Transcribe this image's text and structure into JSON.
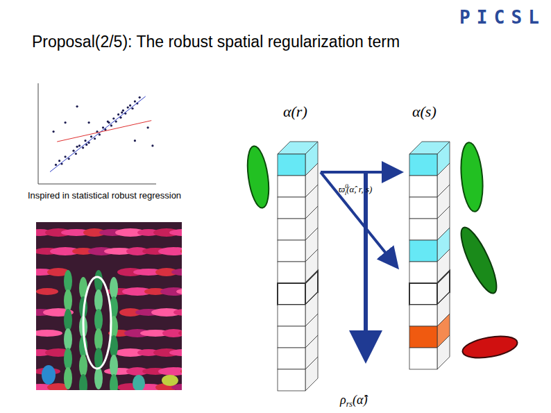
{
  "title": "Proposal(2/5): The robust spatial regularization term",
  "logo": "PICSL",
  "caption": "Inspired in statistical robust regression",
  "chart_data": {
    "type": "scatter",
    "x": [
      1.5,
      2.0,
      2.3,
      2.6,
      3.0,
      3.2,
      3.5,
      3.8,
      4.0,
      4.3,
      4.5,
      4.8,
      5.0,
      5.2,
      5.5,
      5.7,
      6.0,
      6.2,
      6.4,
      6.6,
      6.8,
      7.0,
      7.2,
      7.4,
      7.6,
      7.8,
      8.0,
      8.2,
      8.4,
      8.6,
      3.3,
      4.1,
      5.9,
      7.1,
      3.3,
      1.3,
      2.3,
      4.3,
      8.2,
      9.7,
      9.3,
      1.8
    ],
    "y": [
      1.9,
      2.0,
      2.7,
      2.5,
      3.3,
      3.0,
      3.8,
      3.6,
      4.3,
      4.1,
      4.7,
      4.5,
      5.2,
      4.9,
      5.6,
      5.4,
      6.1,
      5.8,
      6.5,
      6.2,
      6.9,
      6.6,
      7.3,
      7.0,
      7.6,
      7.8,
      7.5,
      8.2,
      8.0,
      8.6,
      3.7,
      3.9,
      6.2,
      7.1,
      7.7,
      5.2,
      6.1,
      6.1,
      4.3,
      3.8,
      5.6,
      2.3
    ],
    "color": "#1c1c50",
    "xlim": [
      0,
      10
    ],
    "ylim": [
      0,
      10
    ],
    "tick_labels": false,
    "fit_lines": [
      {
        "color": "#2f3fc8",
        "x": [
          1.0,
          9.1
        ],
        "y": [
          1.2,
          8.7
        ]
      },
      {
        "color": "#e03030",
        "x": [
          1.6,
          9.6
        ],
        "y": [
          4.2,
          6.3
        ]
      }
    ]
  },
  "diagram": {
    "columns": [
      {
        "label": "α(r)",
        "cells": 11,
        "highlight": [
          0
        ],
        "bold": [
          6
        ]
      },
      {
        "label": "α(s)",
        "cells": 10,
        "highlight": [
          0,
          4
        ],
        "outlier": [
          8
        ],
        "bold": [
          6
        ]
      }
    ],
    "weight_label": {
      "symbol": "ϖ",
      "sup": "0",
      "sub": "i",
      "args": "(α̂, r, s)"
    },
    "robust_label": {
      "symbol": "ρ",
      "sub": "rs",
      "args": "(α̂)"
    }
  }
}
